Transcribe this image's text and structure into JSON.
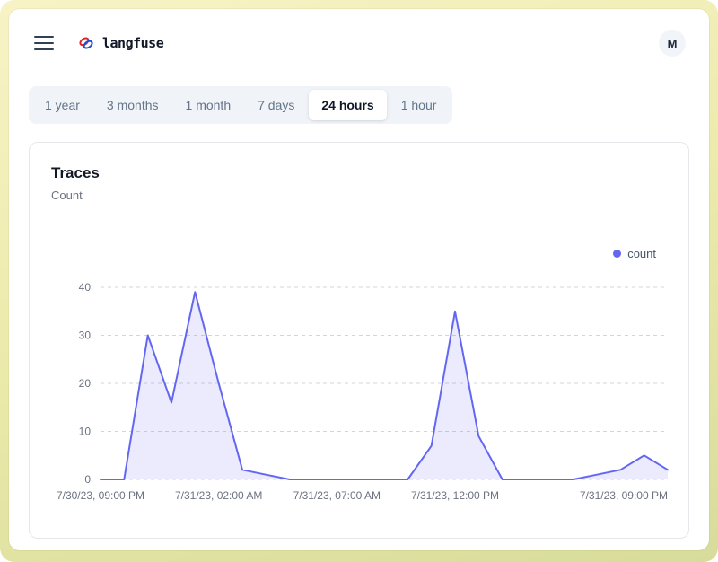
{
  "theme": {
    "accent": "#6366f1",
    "frame_top": "#f8f3c6",
    "frame_bottom": "#d8dc9b",
    "grid_color": "#d1d5db",
    "tick_color": "#6b7280"
  },
  "header": {
    "brand": "langfuse",
    "avatar_label": "M"
  },
  "tabs": {
    "items": [
      {
        "label": "1 year",
        "active": false
      },
      {
        "label": "3 months",
        "active": false
      },
      {
        "label": "1 month",
        "active": false
      },
      {
        "label": "7 days",
        "active": false
      },
      {
        "label": "24 hours",
        "active": true
      },
      {
        "label": "1 hour",
        "active": false
      }
    ]
  },
  "card": {
    "title": "Traces",
    "subtitle": "Count",
    "legend": {
      "label": "count",
      "color": "#6366f1"
    }
  },
  "chart_data": {
    "type": "area",
    "title": "Traces",
    "ylabel": "Count",
    "legend": [
      "count"
    ],
    "legend_position": "top-right",
    "color": "#6366f1",
    "fill_opacity": 0.13,
    "grid": "dashed-horizontal",
    "ylim": [
      0,
      40
    ],
    "y_ticks": [
      0,
      10,
      20,
      30,
      40
    ],
    "x_tick_labels": [
      "7/30/23, 09:00 PM",
      "7/31/23, 02:00 AM",
      "7/31/23, 07:00 AM",
      "7/31/23, 12:00 PM",
      "7/31/23, 09:00 PM"
    ],
    "x_tick_indices": [
      0,
      5,
      10,
      15,
      24
    ],
    "values": [
      0,
      0,
      30,
      16,
      39,
      20,
      2,
      1,
      0,
      0,
      0,
      0,
      0,
      0,
      7,
      35,
      9,
      0,
      0,
      0,
      0,
      1,
      2,
      5,
      2
    ]
  }
}
